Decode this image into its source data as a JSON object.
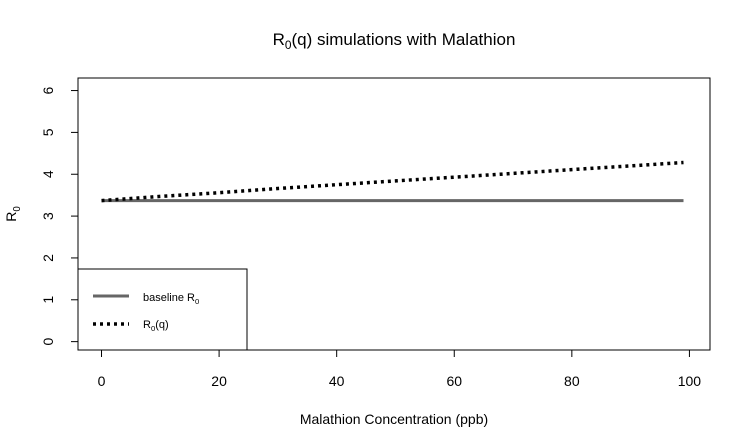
{
  "chart_data": {
    "type": "line",
    "title": {
      "main": "R",
      "sub": "0",
      "rest": "(q) simulations with Malathion"
    },
    "xlabel": "Malathion Concentration (ppb)",
    "ylabel": {
      "main": "R",
      "sub": "0"
    },
    "xlim": [
      -4,
      103.5
    ],
    "ylim": [
      -0.2,
      6.3
    ],
    "x_ticks": [
      "0",
      "20",
      "40",
      "60",
      "80",
      "100"
    ],
    "y_ticks": [
      "0",
      "1",
      "2",
      "3",
      "4",
      "5",
      "6"
    ],
    "grid": false,
    "legend_position": "bottom-left",
    "x": [
      0,
      10,
      20,
      30,
      40,
      50,
      60,
      70,
      80,
      90,
      99
    ],
    "series": [
      {
        "name": {
          "main": "baseline R",
          "sub": "0"
        },
        "style": "solid",
        "color": "#666666",
        "values": [
          3.37,
          3.37,
          3.37,
          3.37,
          3.37,
          3.37,
          3.37,
          3.37,
          3.37,
          3.37,
          3.37
        ]
      },
      {
        "name": {
          "main": "R",
          "sub": "0",
          "rest": "(q)"
        },
        "style": "dotted",
        "color": "#000000",
        "values": [
          3.37,
          3.47,
          3.56,
          3.66,
          3.75,
          3.84,
          3.93,
          4.02,
          4.11,
          4.2,
          4.28
        ]
      }
    ]
  }
}
